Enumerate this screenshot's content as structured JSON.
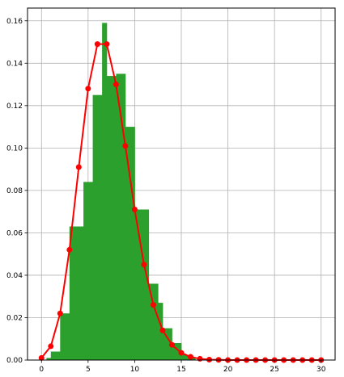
{
  "chart_data": {
    "type": "bar",
    "title": "",
    "xlabel": "",
    "ylabel": "",
    "xlim": [
      -1.5,
      31.5
    ],
    "ylim": [
      0,
      0.166
    ],
    "grid": true,
    "legend": "none",
    "x_ticks": [
      {
        "value": 0,
        "label": "0"
      },
      {
        "value": 5,
        "label": "5"
      },
      {
        "value": 10,
        "label": "10"
      },
      {
        "value": 15,
        "label": "15"
      },
      {
        "value": 20,
        "label": "20"
      },
      {
        "value": 25,
        "label": "25"
      },
      {
        "value": 30,
        "label": "30"
      }
    ],
    "y_ticks": [
      {
        "value": 0.0,
        "label": "0.00"
      },
      {
        "value": 0.02,
        "label": "0.02"
      },
      {
        "value": 0.04,
        "label": "0.04"
      },
      {
        "value": 0.06,
        "label": "0.06"
      },
      {
        "value": 0.08,
        "label": "0.08"
      },
      {
        "value": 0.1,
        "label": "0.10"
      },
      {
        "value": 0.12,
        "label": "0.12"
      },
      {
        "value": 0.14,
        "label": "0.14"
      },
      {
        "value": 0.16,
        "label": "0.16"
      }
    ],
    "series": [
      {
        "kind": "histogram",
        "color": "#2ca02c",
        "bins": [
          {
            "x0": 0.53,
            "x1": 1.0,
            "value": 0.001
          },
          {
            "x0": 1.0,
            "x1": 2.0,
            "value": 0.004
          },
          {
            "x0": 2.0,
            "x1": 2.5,
            "value": 0.022
          },
          {
            "x0": 2.5,
            "x1": 3.0,
            "value": 0.022
          },
          {
            "x0": 3.0,
            "x1": 3.5,
            "value": 0.063
          },
          {
            "x0": 3.5,
            "x1": 4.0,
            "value": 0.063
          },
          {
            "x0": 4.0,
            "x1": 4.5,
            "value": 0.063
          },
          {
            "x0": 4.5,
            "x1": 5.0,
            "value": 0.084
          },
          {
            "x0": 5.0,
            "x1": 5.5,
            "value": 0.084
          },
          {
            "x0": 5.5,
            "x1": 6.0,
            "value": 0.125
          },
          {
            "x0": 6.0,
            "x1": 6.5,
            "value": 0.125
          },
          {
            "x0": 6.5,
            "x1": 7.0,
            "value": 0.159
          },
          {
            "x0": 7.0,
            "x1": 7.5,
            "value": 0.134
          },
          {
            "x0": 7.5,
            "x1": 8.0,
            "value": 0.134
          },
          {
            "x0": 8.0,
            "x1": 8.5,
            "value": 0.135
          },
          {
            "x0": 8.5,
            "x1": 9.0,
            "value": 0.135
          },
          {
            "x0": 9.0,
            "x1": 9.5,
            "value": 0.11
          },
          {
            "x0": 9.5,
            "x1": 10.0,
            "value": 0.11
          },
          {
            "x0": 10.0,
            "x1": 10.5,
            "value": 0.071
          },
          {
            "x0": 10.5,
            "x1": 11.0,
            "value": 0.071
          },
          {
            "x0": 11.0,
            "x1": 11.5,
            "value": 0.071
          },
          {
            "x0": 11.5,
            "x1": 12.0,
            "value": 0.036
          },
          {
            "x0": 12.0,
            "x1": 12.5,
            "value": 0.036
          },
          {
            "x0": 12.5,
            "x1": 13.0,
            "value": 0.027
          },
          {
            "x0": 13.0,
            "x1": 13.5,
            "value": 0.015
          },
          {
            "x0": 13.5,
            "x1": 14.0,
            "value": 0.015
          },
          {
            "x0": 14.0,
            "x1": 14.5,
            "value": 0.008
          },
          {
            "x0": 14.5,
            "x1": 15.0,
            "value": 0.008
          },
          {
            "x0": 15.0,
            "x1": 15.5,
            "value": 0.003
          },
          {
            "x0": 15.5,
            "x1": 16.0,
            "value": 0.002
          },
          {
            "x0": 16.0,
            "x1": 16.5,
            "value": 0.001
          }
        ]
      },
      {
        "kind": "line",
        "color": "#ff0000",
        "marker": "circle",
        "x": [
          0,
          1,
          2,
          3,
          4,
          5,
          6,
          7,
          8,
          9,
          10,
          11,
          12,
          13,
          14,
          15,
          16,
          17,
          18,
          19,
          20,
          21,
          22,
          23,
          24,
          25,
          26,
          27,
          28,
          29,
          30
        ],
        "y": [
          0.001,
          0.0065,
          0.022,
          0.052,
          0.091,
          0.128,
          0.149,
          0.149,
          0.13,
          0.101,
          0.071,
          0.045,
          0.026,
          0.014,
          0.0072,
          0.0034,
          0.0015,
          0.0006,
          0.0002,
          0.0001,
          0,
          0,
          0,
          0,
          0,
          0,
          0,
          0,
          0,
          0,
          0
        ]
      }
    ]
  }
}
